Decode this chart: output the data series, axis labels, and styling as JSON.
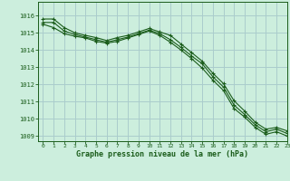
{
  "title": "Graphe pression niveau de la mer (hPa)",
  "bg_color": "#cceedd",
  "grid_color": "#aacccc",
  "line_color": "#1a5c1a",
  "xlim": [
    -0.5,
    23
  ],
  "ylim": [
    1008.7,
    1016.8
  ],
  "yticks": [
    1009,
    1010,
    1011,
    1012,
    1013,
    1014,
    1015,
    1016
  ],
  "xticks": [
    0,
    1,
    2,
    3,
    4,
    5,
    6,
    7,
    8,
    9,
    10,
    11,
    12,
    13,
    14,
    15,
    16,
    17,
    18,
    19,
    20,
    21,
    22,
    23
  ],
  "series1_x": [
    0,
    1,
    2,
    3,
    4,
    5,
    6,
    7,
    8,
    9,
    10,
    11,
    12,
    13,
    14,
    15,
    16,
    17,
    18,
    19,
    20,
    21,
    22,
    23
  ],
  "series1_y": [
    1015.8,
    1015.8,
    1015.3,
    1015.0,
    1014.85,
    1014.72,
    1014.55,
    1014.72,
    1014.85,
    1015.05,
    1015.25,
    1015.05,
    1014.85,
    1014.35,
    1013.85,
    1013.35,
    1012.65,
    1012.05,
    1011.05,
    1010.45,
    1009.8,
    1009.4,
    1009.5,
    1009.3
  ],
  "series2_x": [
    0,
    1,
    2,
    3,
    4,
    5,
    6,
    7,
    8,
    9,
    10,
    11,
    12,
    13,
    14,
    15,
    16,
    17,
    18,
    19,
    20,
    21,
    22,
    23
  ],
  "series2_y": [
    1015.6,
    1015.6,
    1015.1,
    1014.9,
    1014.75,
    1014.6,
    1014.45,
    1014.6,
    1014.75,
    1014.95,
    1015.15,
    1014.95,
    1014.6,
    1014.15,
    1013.65,
    1013.2,
    1012.45,
    1011.85,
    1010.8,
    1010.25,
    1009.65,
    1009.25,
    1009.4,
    1009.15
  ],
  "series3_x": [
    0,
    1,
    2,
    3,
    4,
    5,
    6,
    7,
    8,
    9,
    10,
    11,
    12,
    13,
    14,
    15,
    16,
    17,
    18,
    19,
    20,
    21,
    22,
    23
  ],
  "series3_y": [
    1015.5,
    1015.3,
    1014.95,
    1014.8,
    1014.7,
    1014.5,
    1014.4,
    1014.5,
    1014.7,
    1014.9,
    1015.1,
    1014.85,
    1014.45,
    1014.0,
    1013.5,
    1012.95,
    1012.25,
    1011.65,
    1010.6,
    1010.1,
    1009.5,
    1009.1,
    1009.25,
    1009.0
  ]
}
